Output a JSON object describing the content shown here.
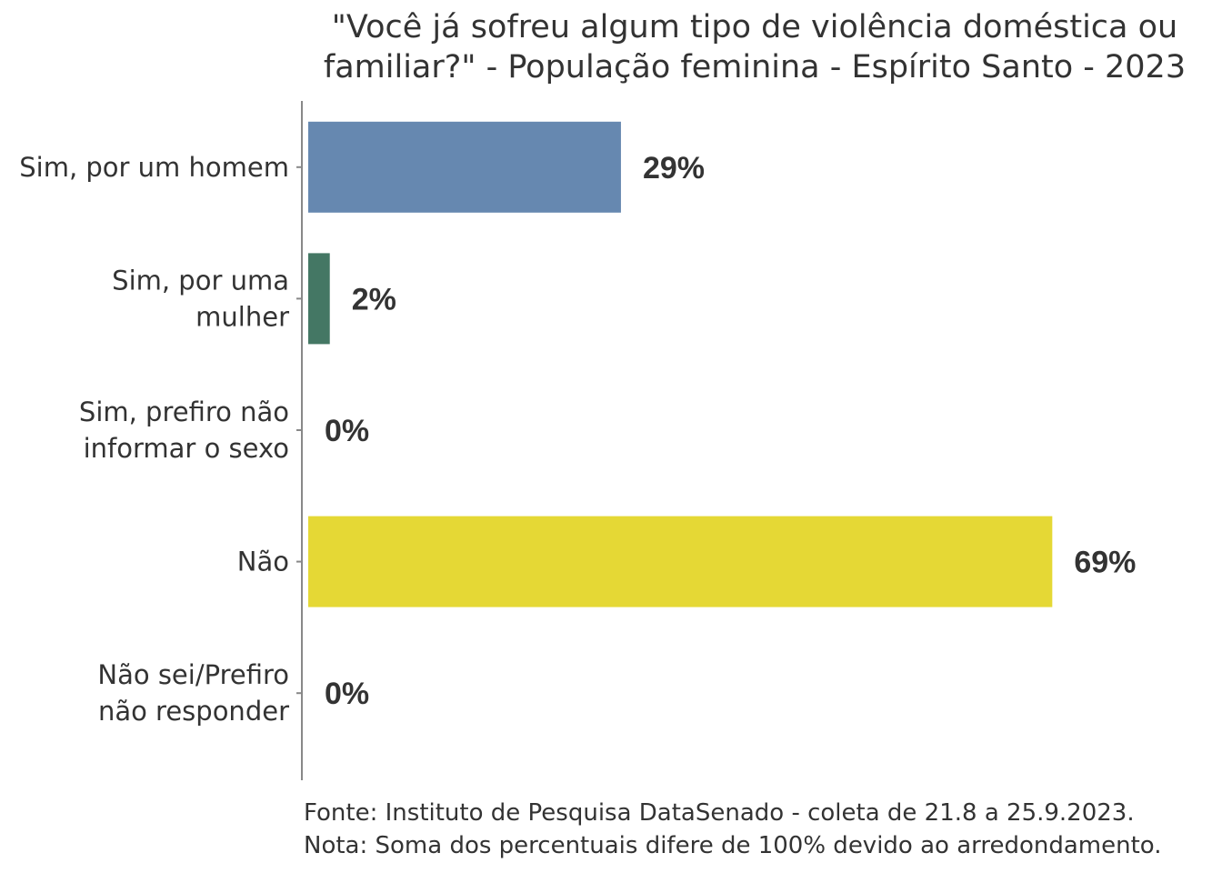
{
  "chart_data": {
    "type": "bar",
    "orientation": "horizontal",
    "title": "\"Você já sofreu algum tipo de violência doméstica ou familiar?\" - População feminina - Espírito Santo - 2023",
    "title_lines": [
      "\"Você já sofreu algum tipo de violência doméstica ou",
      "familiar?\" - População feminina - Espírito Santo - 2023"
    ],
    "categories": [
      "Sim, por um homem",
      "Sim, por uma mulher",
      "Sim, prefiro não informar o sexo",
      "Não",
      "Não sei/Prefiro não responder"
    ],
    "category_lines": [
      [
        "Sim, por um homem"
      ],
      [
        "Sim, por uma",
        "mulher"
      ],
      [
        "Sim, prefiro não",
        "informar o sexo"
      ],
      [
        "Não"
      ],
      [
        "Não sei/Prefiro",
        "não responder"
      ]
    ],
    "values": [
      29,
      2,
      0,
      69,
      0
    ],
    "value_labels": [
      "29%",
      "2%",
      "0%",
      "69%",
      "0%"
    ],
    "colors": [
      "#6688b0",
      "#447764",
      "#999999",
      "#e5d835",
      "#999999"
    ],
    "xlabel": "",
    "ylabel": "",
    "xlim": [
      0,
      72
    ],
    "grid": false,
    "legend": "none"
  },
  "footnotes": {
    "source": "Fonte: Instituto de Pesquisa DataSenado - coleta de 21.8 a 25.9.2023.",
    "note": "Nota: Soma dos percentuais difere de 100% devido ao arredondamento."
  }
}
